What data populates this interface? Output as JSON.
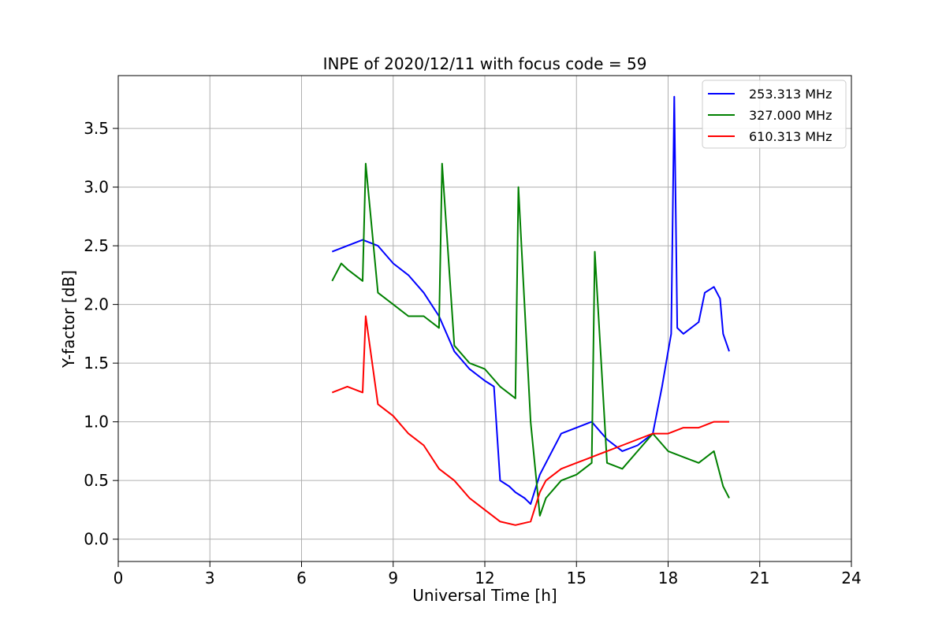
{
  "chart_data": {
    "type": "line",
    "title": "INPE of 2020/12/11 with focus code = 59",
    "xlabel": "Universal Time [h]",
    "ylabel": "Y-factor [dB]",
    "xlim": [
      0,
      24
    ],
    "ylim": [
      -0.19,
      3.95
    ],
    "xticks": [
      0,
      3,
      6,
      9,
      12,
      15,
      18,
      21,
      24
    ],
    "yticks": [
      0.0,
      0.5,
      1.0,
      1.5,
      2.0,
      2.5,
      3.0,
      3.5
    ],
    "xtick_labels": [
      "0",
      "3",
      "6",
      "9",
      "12",
      "15",
      "18",
      "21",
      "24"
    ],
    "ytick_labels": [
      "0.0",
      "0.5",
      "1.0",
      "1.5",
      "2.0",
      "2.5",
      "3.0",
      "3.5"
    ],
    "grid": true,
    "legend_position": "top-right",
    "series": [
      {
        "name": "253.313 MHz",
        "color": "#0000ff",
        "x": [
          7.0,
          7.5,
          8.0,
          8.5,
          9.0,
          9.5,
          10.0,
          10.5,
          11.0,
          11.5,
          12.0,
          12.3,
          12.5,
          12.8,
          13.0,
          13.3,
          13.5,
          13.8,
          14.0,
          14.5,
          15.0,
          15.5,
          16.0,
          16.5,
          17.0,
          17.5,
          17.8,
          18.0,
          18.1,
          18.2,
          18.3,
          18.5,
          19.0,
          19.2,
          19.5,
          19.7,
          19.8,
          20.0
        ],
        "y": [
          2.45,
          2.5,
          2.55,
          2.5,
          2.35,
          2.25,
          2.1,
          1.9,
          1.6,
          1.45,
          1.35,
          1.3,
          0.5,
          0.45,
          0.4,
          0.35,
          0.3,
          0.55,
          0.65,
          0.9,
          0.95,
          1.0,
          0.85,
          0.75,
          0.8,
          0.9,
          1.3,
          1.6,
          1.75,
          3.77,
          1.8,
          1.75,
          1.85,
          2.1,
          2.15,
          2.05,
          1.75,
          1.6
        ]
      },
      {
        "name": "327.000 MHz",
        "color": "#008000",
        "x": [
          7.0,
          7.3,
          7.5,
          8.0,
          8.1,
          8.5,
          9.0,
          9.5,
          10.0,
          10.5,
          10.6,
          11.0,
          11.5,
          12.0,
          12.5,
          13.0,
          13.1,
          13.5,
          13.8,
          14.0,
          14.5,
          15.0,
          15.5,
          15.6,
          16.0,
          16.5,
          17.0,
          17.5,
          18.0,
          18.5,
          19.0,
          19.5,
          19.8,
          20.0
        ],
        "y": [
          2.2,
          2.35,
          2.3,
          2.2,
          3.2,
          2.1,
          2.0,
          1.9,
          1.9,
          1.8,
          3.2,
          1.65,
          1.5,
          1.45,
          1.3,
          1.2,
          3.0,
          1.0,
          0.2,
          0.35,
          0.5,
          0.55,
          0.65,
          2.45,
          0.65,
          0.6,
          0.75,
          0.9,
          0.75,
          0.7,
          0.65,
          0.75,
          0.45,
          0.35
        ]
      },
      {
        "name": "610.313 MHz",
        "color": "#ff0000",
        "x": [
          7.0,
          7.5,
          8.0,
          8.1,
          8.5,
          9.0,
          9.5,
          10.0,
          10.5,
          11.0,
          11.5,
          12.0,
          12.5,
          13.0,
          13.5,
          13.8,
          14.0,
          14.5,
          15.0,
          15.5,
          16.0,
          16.5,
          17.0,
          17.5,
          18.0,
          18.5,
          19.0,
          19.5,
          20.0
        ],
        "y": [
          1.25,
          1.3,
          1.25,
          1.9,
          1.15,
          1.05,
          0.9,
          0.8,
          0.6,
          0.5,
          0.35,
          0.25,
          0.15,
          0.12,
          0.15,
          0.4,
          0.5,
          0.6,
          0.65,
          0.7,
          0.75,
          0.8,
          0.85,
          0.9,
          0.9,
          0.95,
          0.95,
          1.0,
          1.0
        ]
      }
    ]
  }
}
